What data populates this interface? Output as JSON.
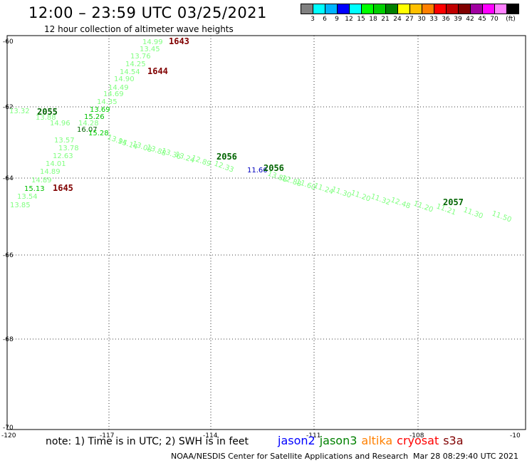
{
  "header": {
    "title": "12:00 – 23:59 UTC 03/25/2021",
    "subtitle": "12 hour collection of altimeter wave heights"
  },
  "legend": {
    "colors": [
      "#808080",
      "#00ffff",
      "#00b4ff",
      "#0000ff",
      "#00ffff",
      "#00ff00",
      "#00d000",
      "#008000",
      "#ffff00",
      "#ffc000",
      "#ff8000",
      "#ff0000",
      "#c00000",
      "#800000",
      "#a000a0",
      "#ff00ff",
      "#ff80ff",
      "#000000"
    ],
    "labels": [
      "3",
      "6",
      "9",
      "12",
      "15",
      "18",
      "21",
      "24",
      "27",
      "30",
      "33",
      "36",
      "39",
      "42",
      "45",
      "70",
      "(ft)"
    ]
  },
  "map": {
    "lat_ticks": [
      "-60",
      "-62",
      "-64",
      "-66",
      "-68",
      "-70"
    ],
    "lon_ticks": [
      "-120",
      "-117",
      "-114",
      "-111",
      "-108",
      "-10"
    ],
    "markers": [
      {
        "text": "1643",
        "color": "#800000"
      },
      {
        "text": "1644",
        "color": "#800000"
      },
      {
        "text": "1645",
        "color": "#800000"
      },
      {
        "text": "2055",
        "color": "#006400"
      },
      {
        "text": "2056",
        "color": "#006400"
      },
      {
        "text": "2056",
        "color": "#006400"
      },
      {
        "text": "2057",
        "color": "#006400"
      }
    ],
    "wave_labels": [
      "14.99",
      "13.45",
      "13.76",
      "14.25",
      "14.54",
      "14.90",
      "14.49",
      "14.69",
      "14.35",
      "13.69",
      "15.26",
      "14.28",
      "16.07",
      "15.28",
      "13.57",
      "13.78",
      "12.63",
      "14.01",
      "14.89",
      "14.89",
      "15.13",
      "13.54",
      "13.85",
      "13.32",
      "13.88",
      "14.96",
      "13.95",
      "14.14",
      "13.08",
      "13.88",
      "13.36",
      "13.24",
      "12.89",
      "12.33",
      "11.66",
      "13.88",
      "12.88",
      "11.60",
      "11.24",
      "11.30",
      "11.20",
      "11.32",
      "12.48",
      "11.20",
      "11.21",
      "11.30",
      "11.50"
    ]
  },
  "footer": {
    "note": "note: 1) Time is in UTC; 2) SWH is in feet",
    "satellites": [
      {
        "name": "jason2",
        "color": "#0000ff"
      },
      {
        "name": "jason3",
        "color": "#008000"
      },
      {
        "name": "altika",
        "color": "#ff8000"
      },
      {
        "name": "cryosat",
        "color": "#ff0000"
      },
      {
        "name": "s3a",
        "color": "#800000"
      }
    ],
    "credit": "NOAA/NESDIS Center for Satellite Applications and Research",
    "timestamp": "Mar 28 08:29:40 UTC 2021"
  }
}
